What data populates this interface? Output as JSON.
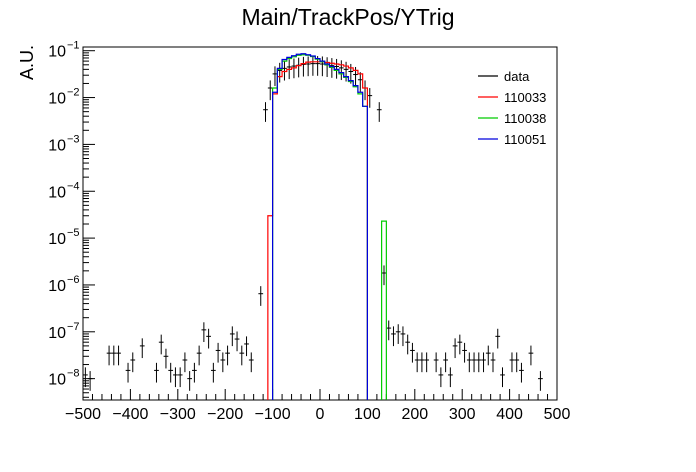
{
  "chart_data": {
    "type": "histogram",
    "title": "Main/TrackPos/YTrig",
    "ylabel": "A.U.",
    "xlabel": "",
    "xlim": [
      -500,
      500
    ],
    "ylim": [
      3.5e-09,
      0.12
    ],
    "yscale": "log",
    "bin_width": 10,
    "x_ticks": [
      -500,
      -400,
      -300,
      -200,
      -100,
      0,
      100,
      200,
      300,
      400,
      500
    ],
    "y_ticks": [
      {
        "value": 1e-08,
        "base": "10",
        "exp": "−8"
      },
      {
        "value": 1e-07,
        "base": "10",
        "exp": "−7"
      },
      {
        "value": 1e-06,
        "base": "10",
        "exp": "−6"
      },
      {
        "value": 1e-05,
        "base": "10",
        "exp": "−5"
      },
      {
        "value": 0.0001,
        "base": "10",
        "exp": "−4"
      },
      {
        "value": 0.001,
        "base": "10",
        "exp": "−3"
      },
      {
        "value": 0.01,
        "base": "10",
        "exp": "−2"
      },
      {
        "value": 0.1,
        "base": "10",
        "exp": "−1"
      }
    ],
    "legend_position": "top-right",
    "series": [
      {
        "name": "data",
        "style": "points",
        "color": "#000000",
        "points": [
          {
            "x": -495,
            "y": 1.2e-08
          },
          {
            "x": -485,
            "y": 1e-08
          },
          {
            "x": -445,
            "y": 3.5e-08
          },
          {
            "x": -435,
            "y": 3.5e-08
          },
          {
            "x": -425,
            "y": 3.5e-08
          },
          {
            "x": -405,
            "y": 1.5e-08
          },
          {
            "x": -395,
            "y": 2.5e-08
          },
          {
            "x": -375,
            "y": 5e-08
          },
          {
            "x": -345,
            "y": 1.5e-08
          },
          {
            "x": -335,
            "y": 6e-08
          },
          {
            "x": -325,
            "y": 3e-08
          },
          {
            "x": -315,
            "y": 1.5e-08
          },
          {
            "x": -305,
            "y": 1.2e-08
          },
          {
            "x": -295,
            "y": 1.2e-08
          },
          {
            "x": -285,
            "y": 2.5e-08
          },
          {
            "x": -275,
            "y": 1e-08
          },
          {
            "x": -265,
            "y": 1.5e-08
          },
          {
            "x": -255,
            "y": 3.5e-08
          },
          {
            "x": -245,
            "y": 1.1e-07
          },
          {
            "x": -235,
            "y": 8e-08
          },
          {
            "x": -225,
            "y": 1.5e-08
          },
          {
            "x": -215,
            "y": 4e-08
          },
          {
            "x": -205,
            "y": 2.5e-08
          },
          {
            "x": -195,
            "y": 3.5e-08
          },
          {
            "x": -185,
            "y": 9e-08
          },
          {
            "x": -175,
            "y": 7e-08
          },
          {
            "x": -165,
            "y": 3.5e-08
          },
          {
            "x": -155,
            "y": 5.5e-08
          },
          {
            "x": -145,
            "y": 2.5e-08
          },
          {
            "x": -125,
            "y": 6.5e-07
          },
          {
            "x": -115,
            "y": 0.0055
          },
          {
            "x": -105,
            "y": 0.016
          },
          {
            "x": -95,
            "y": 0.032
          },
          {
            "x": -85,
            "y": 0.038
          },
          {
            "x": -75,
            "y": 0.042
          },
          {
            "x": -65,
            "y": 0.045
          },
          {
            "x": -55,
            "y": 0.047
          },
          {
            "x": -45,
            "y": 0.049
          },
          {
            "x": -35,
            "y": 0.051
          },
          {
            "x": -25,
            "y": 0.052
          },
          {
            "x": -15,
            "y": 0.053
          },
          {
            "x": -5,
            "y": 0.053
          },
          {
            "x": 5,
            "y": 0.052
          },
          {
            "x": 15,
            "y": 0.05
          },
          {
            "x": 25,
            "y": 0.048
          },
          {
            "x": 35,
            "y": 0.046
          },
          {
            "x": 45,
            "y": 0.043
          },
          {
            "x": 55,
            "y": 0.04
          },
          {
            "x": 65,
            "y": 0.036
          },
          {
            "x": 75,
            "y": 0.031
          },
          {
            "x": 85,
            "y": 0.024
          },
          {
            "x": 95,
            "y": 0.016
          },
          {
            "x": 105,
            "y": 0.011
          },
          {
            "x": 125,
            "y": 0.0055
          },
          {
            "x": 135,
            "y": 1.8e-06
          },
          {
            "x": 145,
            "y": 1.2e-07
          },
          {
            "x": 155,
            "y": 9e-08
          },
          {
            "x": 165,
            "y": 1e-07
          },
          {
            "x": 175,
            "y": 9e-08
          },
          {
            "x": 185,
            "y": 6e-08
          },
          {
            "x": 195,
            "y": 4e-08
          },
          {
            "x": 205,
            "y": 2.5e-08
          },
          {
            "x": 215,
            "y": 2.5e-08
          },
          {
            "x": 225,
            "y": 2.5e-08
          },
          {
            "x": 245,
            "y": 2.5e-08
          },
          {
            "x": 255,
            "y": 1.2e-08
          },
          {
            "x": 265,
            "y": 2.5e-08
          },
          {
            "x": 275,
            "y": 1.2e-08
          },
          {
            "x": 285,
            "y": 5e-08
          },
          {
            "x": 295,
            "y": 6e-08
          },
          {
            "x": 305,
            "y": 4e-08
          },
          {
            "x": 315,
            "y": 2.5e-08
          },
          {
            "x": 325,
            "y": 2.5e-08
          },
          {
            "x": 335,
            "y": 2.5e-08
          },
          {
            "x": 345,
            "y": 2.5e-08
          },
          {
            "x": 355,
            "y": 3.5e-08
          },
          {
            "x": 365,
            "y": 2.5e-08
          },
          {
            "x": 375,
            "y": 8e-08
          },
          {
            "x": 385,
            "y": 1.2e-08
          },
          {
            "x": 405,
            "y": 2.5e-08
          },
          {
            "x": 415,
            "y": 2.5e-08
          },
          {
            "x": 425,
            "y": 1.5e-08
          },
          {
            "x": 445,
            "y": 3.5e-08
          },
          {
            "x": 465,
            "y": 1e-08
          }
        ]
      },
      {
        "name": "110033",
        "style": "step",
        "color": "#ff0000",
        "bins": [
          {
            "x0": -110,
            "y": 3e-05
          },
          {
            "x0": -100,
            "y": 0.012
          },
          {
            "x0": -90,
            "y": 0.028
          },
          {
            "x0": -80,
            "y": 0.036
          },
          {
            "x0": -70,
            "y": 0.04
          },
          {
            "x0": -60,
            "y": 0.043
          },
          {
            "x0": -50,
            "y": 0.048
          },
          {
            "x0": -40,
            "y": 0.053
          },
          {
            "x0": -30,
            "y": 0.057
          },
          {
            "x0": -20,
            "y": 0.058
          },
          {
            "x0": -10,
            "y": 0.058
          },
          {
            "x0": 0,
            "y": 0.058
          },
          {
            "x0": 10,
            "y": 0.056
          },
          {
            "x0": 20,
            "y": 0.054
          },
          {
            "x0": 30,
            "y": 0.052
          },
          {
            "x0": 40,
            "y": 0.05
          },
          {
            "x0": 50,
            "y": 0.047
          },
          {
            "x0": 60,
            "y": 0.043
          },
          {
            "x0": 70,
            "y": 0.038
          },
          {
            "x0": 80,
            "y": 0.032
          },
          {
            "x0": 90,
            "y": 0.016
          }
        ]
      },
      {
        "name": "110038",
        "style": "step",
        "color": "#00cc00",
        "bins": [
          {
            "x0": -100,
            "y": 0.016
          },
          {
            "x0": -90,
            "y": 0.04
          },
          {
            "x0": -80,
            "y": 0.06
          },
          {
            "x0": -70,
            "y": 0.068
          },
          {
            "x0": -60,
            "y": 0.074
          },
          {
            "x0": -50,
            "y": 0.08
          },
          {
            "x0": -40,
            "y": 0.082
          },
          {
            "x0": -30,
            "y": 0.08
          },
          {
            "x0": -20,
            "y": 0.075
          },
          {
            "x0": -10,
            "y": 0.066
          },
          {
            "x0": 0,
            "y": 0.058
          },
          {
            "x0": 10,
            "y": 0.05
          },
          {
            "x0": 20,
            "y": 0.044
          },
          {
            "x0": 30,
            "y": 0.038
          },
          {
            "x0": 40,
            "y": 0.032
          },
          {
            "x0": 50,
            "y": 0.027
          },
          {
            "x0": 60,
            "y": 0.022
          },
          {
            "x0": 70,
            "y": 0.017
          },
          {
            "x0": 80,
            "y": 0.012
          },
          {
            "x0": 90,
            "y": 0.0065
          },
          {
            "x0": 130,
            "y": 2.3e-05
          }
        ]
      },
      {
        "name": "110051",
        "style": "step",
        "color": "#0000dd",
        "bins": [
          {
            "x0": -100,
            "y": 0.013
          },
          {
            "x0": -90,
            "y": 0.042
          },
          {
            "x0": -80,
            "y": 0.065
          },
          {
            "x0": -70,
            "y": 0.072
          },
          {
            "x0": -60,
            "y": 0.078
          },
          {
            "x0": -50,
            "y": 0.084
          },
          {
            "x0": -40,
            "y": 0.086
          },
          {
            "x0": -30,
            "y": 0.082
          },
          {
            "x0": -20,
            "y": 0.077
          },
          {
            "x0": -10,
            "y": 0.068
          },
          {
            "x0": 0,
            "y": 0.06
          },
          {
            "x0": 10,
            "y": 0.052
          },
          {
            "x0": 20,
            "y": 0.046
          },
          {
            "x0": 30,
            "y": 0.04
          },
          {
            "x0": 40,
            "y": 0.034
          },
          {
            "x0": 50,
            "y": 0.028
          },
          {
            "x0": 60,
            "y": 0.023
          },
          {
            "x0": 70,
            "y": 0.018
          },
          {
            "x0": 80,
            "y": 0.013
          },
          {
            "x0": 90,
            "y": 0.0065
          }
        ]
      }
    ]
  }
}
